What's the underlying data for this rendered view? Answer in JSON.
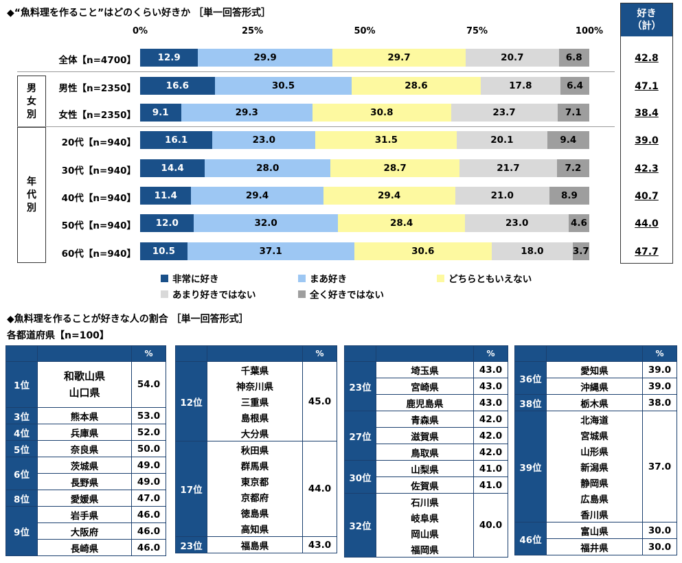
{
  "chart_data": {
    "type": "bar",
    "title": "◆“魚料理を作ること”はどのくらい好きか ［単一回答形式］",
    "axis_ticks": [
      "0%",
      "25%",
      "50%",
      "75%",
      "100%"
    ],
    "xlim": [
      0,
      100
    ],
    "stacked": true,
    "orientation": "horizontal",
    "categories": [
      "全体【n=4700】",
      "男性【n=2350】",
      "女性【n=2350】",
      "20代【n=940】",
      "30代【n=940】",
      "40代【n=940】",
      "50代【n=940】",
      "60代【n=940】"
    ],
    "groups": [
      {
        "label": "男女別",
        "rows": [
          1,
          2
        ]
      },
      {
        "label": "年代別",
        "rows": [
          3,
          4,
          5,
          6,
          7
        ]
      }
    ],
    "series": [
      {
        "name": "非常に好き",
        "color": "#1a5089",
        "values": [
          12.9,
          16.6,
          9.1,
          16.1,
          14.4,
          11.4,
          12.0,
          10.5
        ]
      },
      {
        "name": "まあ好き",
        "color": "#9dc7f3",
        "values": [
          29.9,
          30.5,
          29.3,
          23.0,
          28.0,
          29.4,
          32.0,
          37.1
        ]
      },
      {
        "name": "どちらともいえない",
        "color": "#fdf9a0",
        "values": [
          29.7,
          28.6,
          30.8,
          31.5,
          28.7,
          29.4,
          28.4,
          30.6
        ]
      },
      {
        "name": "あまり好きではない",
        "color": "#d9d9d9",
        "values": [
          20.7,
          17.8,
          23.7,
          20.1,
          21.7,
          21.0,
          23.0,
          18.0
        ]
      },
      {
        "name": "全く好きではない",
        "color": "#9e9e9e",
        "values": [
          6.8,
          6.4,
          7.1,
          9.4,
          7.2,
          8.9,
          4.6,
          3.7
        ]
      }
    ],
    "like_total": {
      "header": [
        "好き",
        "（計）"
      ],
      "values": [
        "42.8",
        "47.1",
        "38.4",
        "39.0",
        "42.3",
        "40.7",
        "44.0",
        "47.7"
      ]
    },
    "legend_placement": "bottom"
  },
  "ranking": {
    "title": "◆魚料理を作ることが好きな人の割合 ［単一回答形式］",
    "subtitle": "各都道府県【n=100】",
    "pct_header": "%",
    "tables": [
      {
        "rows": [
          {
            "rank": "1位",
            "prefs": [
              "和歌山県",
              "山口県"
            ],
            "value": "54.0",
            "merged": true
          },
          {
            "rank": "3位",
            "prefs": [
              "熊本県"
            ],
            "value": "53.0"
          },
          {
            "rank": "4位",
            "prefs": [
              "兵庫県"
            ],
            "value": "52.0"
          },
          {
            "rank": "5位",
            "prefs": [
              "奈良県"
            ],
            "value": "50.0"
          },
          {
            "rank": "6位",
            "prefs": [
              "茨城県",
              "長野県"
            ],
            "value": "49.0"
          },
          {
            "rank": "8位",
            "prefs": [
              "愛媛県"
            ],
            "value": "47.0"
          },
          {
            "rank": "9位",
            "prefs": [
              "岩手県",
              "大阪府",
              "長崎県"
            ],
            "value": "46.0"
          }
        ]
      },
      {
        "rows": [
          {
            "rank": "12位",
            "prefs": [
              "千葉県",
              "神奈川県",
              "三重県",
              "島根県",
              "大分県"
            ],
            "value": "45.0",
            "merged": true
          },
          {
            "rank": "17位",
            "prefs": [
              "秋田県",
              "群馬県",
              "東京都",
              "京都府",
              "徳島県",
              "高知県"
            ],
            "value": "44.0",
            "merged": true
          },
          {
            "rank": "23位",
            "prefs": [
              "福島県"
            ],
            "value": "43.0"
          }
        ]
      },
      {
        "rows": [
          {
            "rank": "23位",
            "prefs": [
              "埼玉県",
              "宮崎県",
              "鹿児島県"
            ],
            "value": "43.0"
          },
          {
            "rank": "27位",
            "prefs": [
              "青森県",
              "滋賀県",
              "鳥取県"
            ],
            "value": "42.0"
          },
          {
            "rank": "30位",
            "prefs": [
              "山梨県",
              "佐賀県"
            ],
            "value": "41.0"
          },
          {
            "rank": "32位",
            "prefs": [
              "石川県",
              "岐阜県",
              "岡山県",
              "福岡県"
            ],
            "value": "40.0",
            "merged": true
          }
        ]
      },
      {
        "rows": [
          {
            "rank": "36位",
            "prefs": [
              "愛知県",
              "沖縄県"
            ],
            "value": "39.0"
          },
          {
            "rank": "38位",
            "prefs": [
              "栃木県"
            ],
            "value": "38.0"
          },
          {
            "rank": "39位",
            "prefs": [
              "北海道",
              "宮城県",
              "山形県",
              "新潟県",
              "静岡県",
              "広島県",
              "香川県"
            ],
            "value": "37.0",
            "merged": true
          },
          {
            "rank": "46位",
            "prefs": [
              "富山県",
              "福井県"
            ],
            "value": "30.0"
          }
        ]
      }
    ]
  }
}
